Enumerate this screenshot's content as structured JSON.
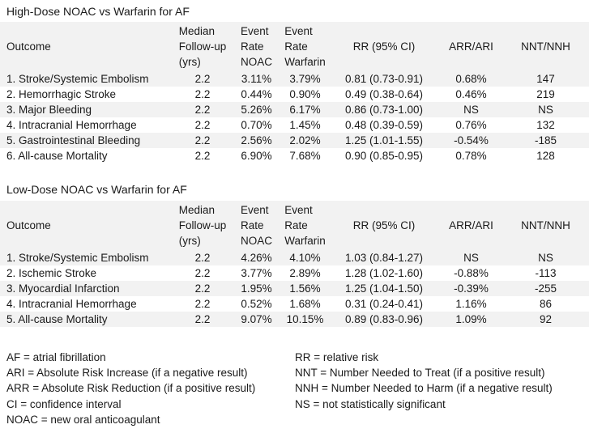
{
  "page": {
    "background_color": "#ffffff",
    "stripe_color": "#f2f2f2",
    "text_color": "#1a1a1a"
  },
  "tables": [
    {
      "title": "High-Dose NOAC vs Warfarin for AF",
      "headers": [
        "Outcome",
        "Median\nFollow-up\n(yrs)",
        "Event\nRate\nNOAC",
        "Event\nRate\nWarfarin",
        "RR (95% CI)",
        "ARR/ARI",
        "NNT/NNH"
      ],
      "rows": [
        [
          "1. Stroke/Systemic Embolism",
          "2.2",
          "3.11%",
          "3.79%",
          "0.81 (0.73-0.91)",
          "0.68%",
          "147"
        ],
        [
          "2. Hemorrhagic Stroke",
          "2.2",
          "0.44%",
          "0.90%",
          "0.49 (0.38-0.64)",
          "0.46%",
          "219"
        ],
        [
          "3. Major Bleeding",
          "2.2",
          "5.26%",
          "6.17%",
          "0.86 (0.73-1.00)",
          "NS",
          "NS"
        ],
        [
          "4. Intracranial Hemorrhage",
          "2.2",
          "0.70%",
          "1.45%",
          "0.48 (0.39-0.59)",
          "0.76%",
          "132"
        ],
        [
          "5. Gastrointestinal Bleeding",
          "2.2",
          "2.56%",
          "2.02%",
          "1.25 (1.01-1.55)",
          "-0.54%",
          "-185"
        ],
        [
          "6. All-cause Mortality",
          "2.2",
          "6.90%",
          "7.68%",
          "0.90 (0.85-0.95)",
          "0.78%",
          "128"
        ]
      ]
    },
    {
      "title": "Low-Dose NOAC vs Warfarin for AF",
      "headers": [
        "Outcome",
        "Median\nFollow-up\n(yrs)",
        "Event\nRate\nNOAC",
        "Event\nRate\nWarfarin",
        "RR (95% CI)",
        "ARR/ARI",
        "NNT/NNH"
      ],
      "rows": [
        [
          "1. Stroke/Systemic Embolism",
          "2.2",
          "4.26%",
          "4.10%",
          "1.03 (0.84-1.27)",
          "NS",
          "NS"
        ],
        [
          "2. Ischemic Stroke",
          "2.2",
          "3.77%",
          "2.89%",
          "1.28 (1.02-1.60)",
          "-0.88%",
          "-113"
        ],
        [
          "3. Myocardial Infarction",
          "2.2",
          "1.95%",
          "1.56%",
          "1.25 (1.04-1.50)",
          "-0.39%",
          "-255"
        ],
        [
          "4. Intracranial Hemorrhage",
          "2.2",
          "0.52%",
          "1.68%",
          "0.31 (0.24-0.41)",
          "1.16%",
          "86"
        ],
        [
          "5. All-cause Mortality",
          "2.2",
          "9.07%",
          "10.15%",
          "0.89 (0.83-0.96)",
          "1.09%",
          "92"
        ]
      ]
    }
  ],
  "footnotes": {
    "left": [
      "AF = atrial fibrillation",
      "ARI = Absolute Risk Increase (if a negative result)",
      "ARR = Absolute Risk Reduction (if a positive result)",
      "CI = confidence interval",
      "NOAC = new oral anticoagulant"
    ],
    "right": [
      "RR = relative risk",
      "NNT = Number Needed to Treat (if a positive result)",
      "NNH = Number Needed to Harm (if a negative result)",
      "NS = not statistically significant"
    ]
  }
}
